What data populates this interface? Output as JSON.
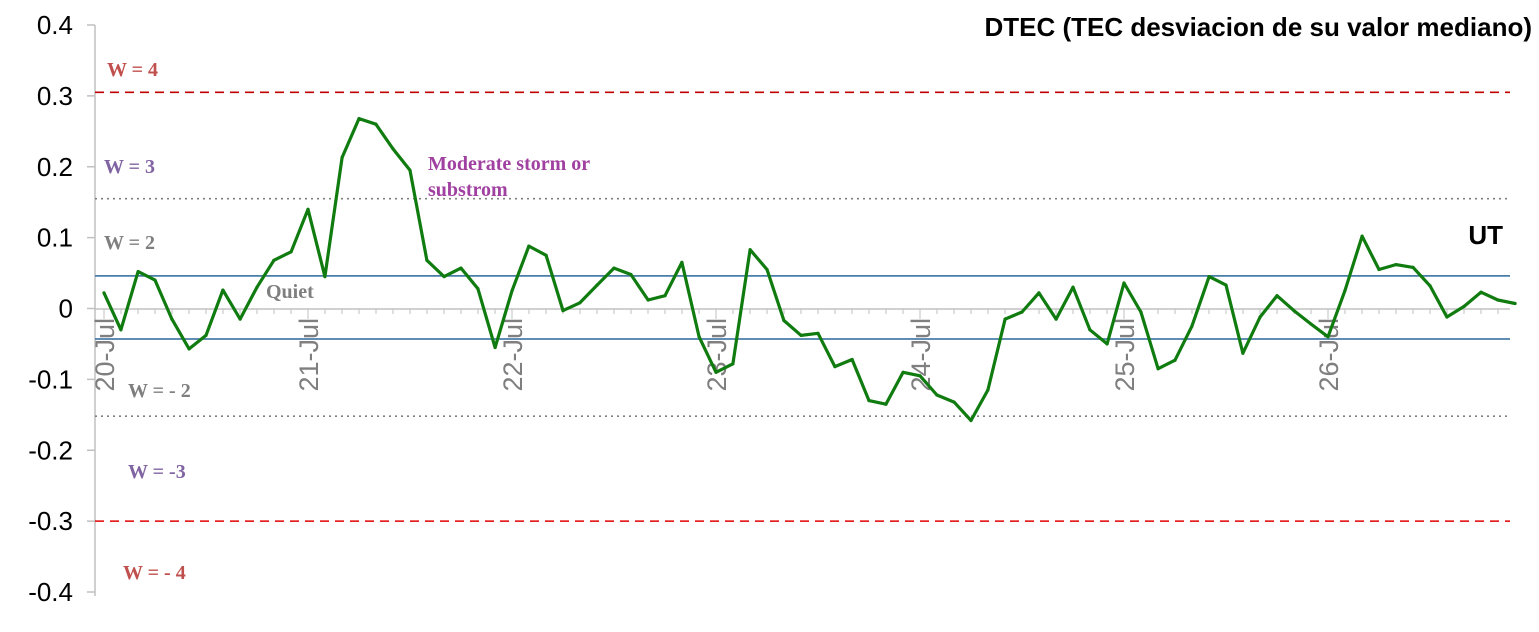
{
  "chart_data": {
    "type": "line",
    "title": "DTEC (TEC desviacion de su valor mediano)",
    "xlabel": "UT",
    "ylabel": "",
    "ylim": [
      -0.4,
      0.4
    ],
    "yticks": [
      "0.4",
      "0.3",
      "0.2",
      "0.1",
      "0",
      "-0.1",
      "-0.2",
      "-0.3",
      "-0.4"
    ],
    "xticks": [
      "20-Jul",
      "21-Jul",
      "22-Jul",
      "23-Jul",
      "24-Jul",
      "25-Jul",
      "26-Jul"
    ],
    "grid": false,
    "series": [
      {
        "name": "",
        "color": "#107c10",
        "x_days": [
          0,
          0.083,
          0.167,
          0.25,
          0.333,
          0.417,
          0.5,
          0.583,
          0.667,
          0.75,
          0.833,
          0.917,
          1.0,
          1.083,
          1.167,
          1.25,
          1.333,
          1.417,
          1.5,
          1.583,
          1.667,
          1.75,
          1.833,
          1.917,
          2.0,
          2.083,
          2.167,
          2.25,
          2.333,
          2.417,
          2.5,
          2.583,
          2.667,
          2.75,
          2.833,
          2.917,
          3.0,
          3.083,
          3.167,
          3.25,
          3.333,
          3.417,
          3.5,
          3.583,
          3.667,
          3.75,
          3.833,
          3.917,
          4.0,
          4.083,
          4.167,
          4.25,
          4.333,
          4.417,
          4.5,
          4.583,
          4.667,
          4.75,
          4.833,
          4.917,
          5.0,
          5.083,
          5.167,
          5.25,
          5.333,
          5.417,
          5.5,
          5.583,
          5.667,
          5.75,
          5.833,
          5.917,
          6.0,
          6.083,
          6.167,
          6.25,
          6.333,
          6.417,
          6.5,
          6.583,
          6.667,
          6.75,
          6.833,
          6.917
        ],
        "values": [
          0.022,
          -0.03,
          0.052,
          0.04,
          -0.015,
          -0.057,
          -0.038,
          0.026,
          -0.015,
          0.03,
          0.068,
          0.08,
          0.14,
          0.045,
          0.213,
          0.268,
          0.26,
          0.225,
          0.195,
          0.068,
          0.045,
          0.057,
          0.028,
          -0.055,
          0.025,
          0.088,
          0.075,
          -0.003,
          0.008,
          0.033,
          0.057,
          0.048,
          0.012,
          0.018,
          0.065,
          -0.04,
          -0.09,
          -0.078,
          0.083,
          0.055,
          -0.017,
          -0.038,
          -0.035,
          -0.082,
          -0.072,
          -0.13,
          -0.135,
          -0.09,
          -0.095,
          -0.122,
          -0.132,
          -0.158,
          -0.115,
          -0.015,
          -0.005,
          0.022,
          -0.015,
          0.03,
          -0.03,
          -0.05,
          0.036,
          -0.005,
          -0.085,
          -0.073,
          -0.025,
          0.045,
          0.033,
          -0.063,
          -0.012,
          0.018,
          -0.003,
          -0.022,
          -0.04,
          0.025,
          0.102,
          0.055,
          0.062,
          0.058,
          0.032,
          -0.012,
          0.003,
          0.023,
          0.012,
          0.007
        ]
      }
    ],
    "reference_lines": [
      {
        "y": 0.305,
        "color": "#c00000",
        "style": "dashed"
      },
      {
        "y": 0.155,
        "color": "#7f7f7f",
        "style": "dotted"
      },
      {
        "y": 0.046,
        "color": "#4a7da8",
        "style": "solid"
      },
      {
        "y": -0.043,
        "color": "#4a7da8",
        "style": "solid"
      },
      {
        "y": -0.152,
        "color": "#7f7f7f",
        "style": "dotted"
      },
      {
        "y": -0.3,
        "color": "#e00000",
        "style": "dashed"
      }
    ],
    "annotations": [
      {
        "text": "W = 4",
        "color": "#c0504d"
      },
      {
        "text": "W = 3",
        "color": "#8064a2"
      },
      {
        "text": "Moderate storm or",
        "color": "#a040a0"
      },
      {
        "text": "substrom",
        "color": "#a040a0"
      },
      {
        "text": "W = 2",
        "color": "#7f7f7f"
      },
      {
        "text": "Quiet",
        "color": "#7f7f7f"
      },
      {
        "text": "W = - 2",
        "color": "#7f7f7f"
      },
      {
        "text": "W = -3",
        "color": "#8064a2"
      },
      {
        "text": "W = - 4",
        "color": "#c0504d"
      }
    ]
  }
}
